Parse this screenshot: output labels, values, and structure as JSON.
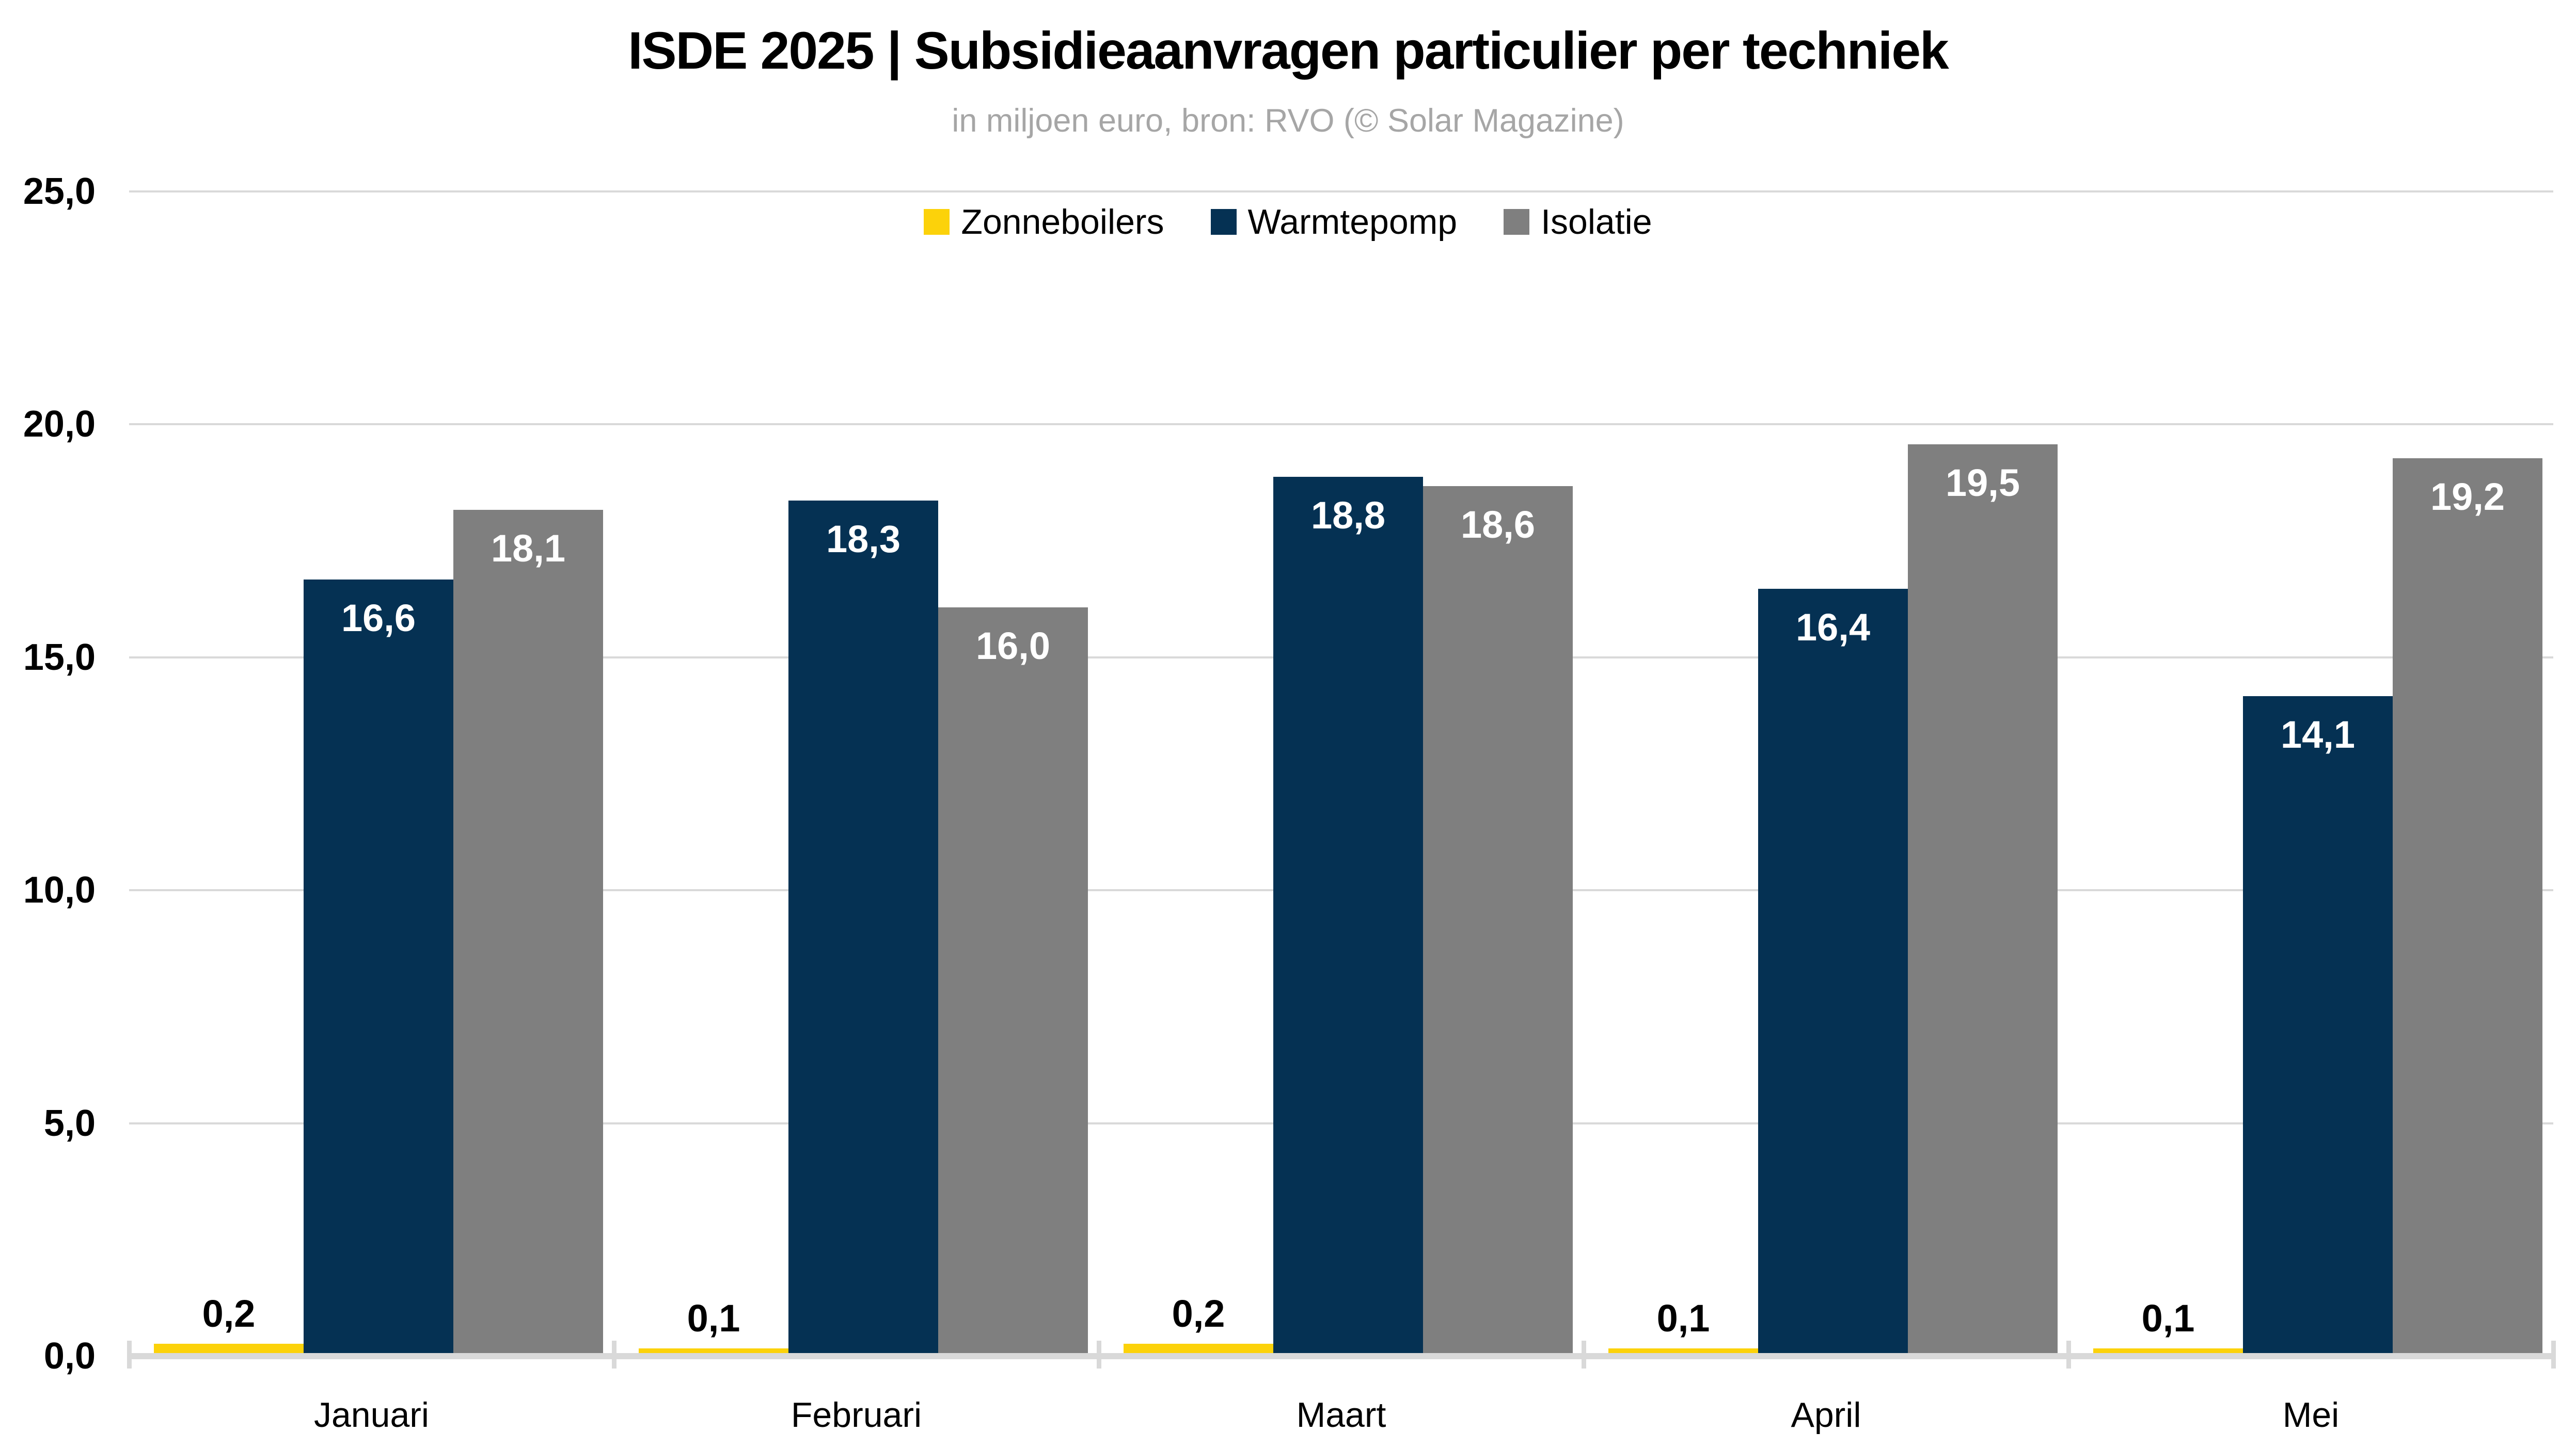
{
  "colors": {
    "background": "#FFFFFF",
    "gridline": "#D9D9D9",
    "axis_line": "#D9D9D9",
    "title_text": "#000000",
    "subtitle_text": "#A6A6A6",
    "bar_label_inside": "#FFFFFF",
    "bar_label_above": "#000000"
  },
  "chart_data": {
    "type": "bar",
    "title": "ISDE 2025 | Subsidieaanvragen particulier per techniek",
    "subtitle": "in miljoen euro, bron: RVO (© Solar Magazine)",
    "categories": [
      "Januari",
      "Februari",
      "Maart",
      "April",
      "Mei"
    ],
    "series": [
      {
        "name": "Zonneboilers",
        "color": "#FCD20A",
        "label_position": "above",
        "values": [
          0.2,
          0.1,
          0.2,
          0.1,
          0.1
        ],
        "labels": [
          "0,2",
          "0,1",
          "0,2",
          "0,1",
          "0,1"
        ]
      },
      {
        "name": "Warmtepomp",
        "color": "#053153",
        "label_position": "inside",
        "values": [
          16.6,
          18.3,
          18.8,
          16.4,
          14.1
        ],
        "labels": [
          "16,6",
          "18,3",
          "18,8",
          "16,4",
          "14,1"
        ]
      },
      {
        "name": "Isolatie",
        "color": "#7F7F7F",
        "label_position": "inside",
        "values": [
          18.1,
          16.0,
          18.6,
          19.5,
          19.2
        ],
        "labels": [
          "18,1",
          "16,0",
          "18,6",
          "19,5",
          "19,2"
        ]
      }
    ],
    "y_axis": {
      "min": 0,
      "max": 25,
      "ticks": [
        0,
        5,
        10,
        15,
        20,
        25
      ],
      "tick_labels": [
        "0,0",
        "5,0",
        "10,0",
        "15,0",
        "20,0",
        "25,0"
      ]
    },
    "grid": true,
    "legend_position": "top"
  }
}
